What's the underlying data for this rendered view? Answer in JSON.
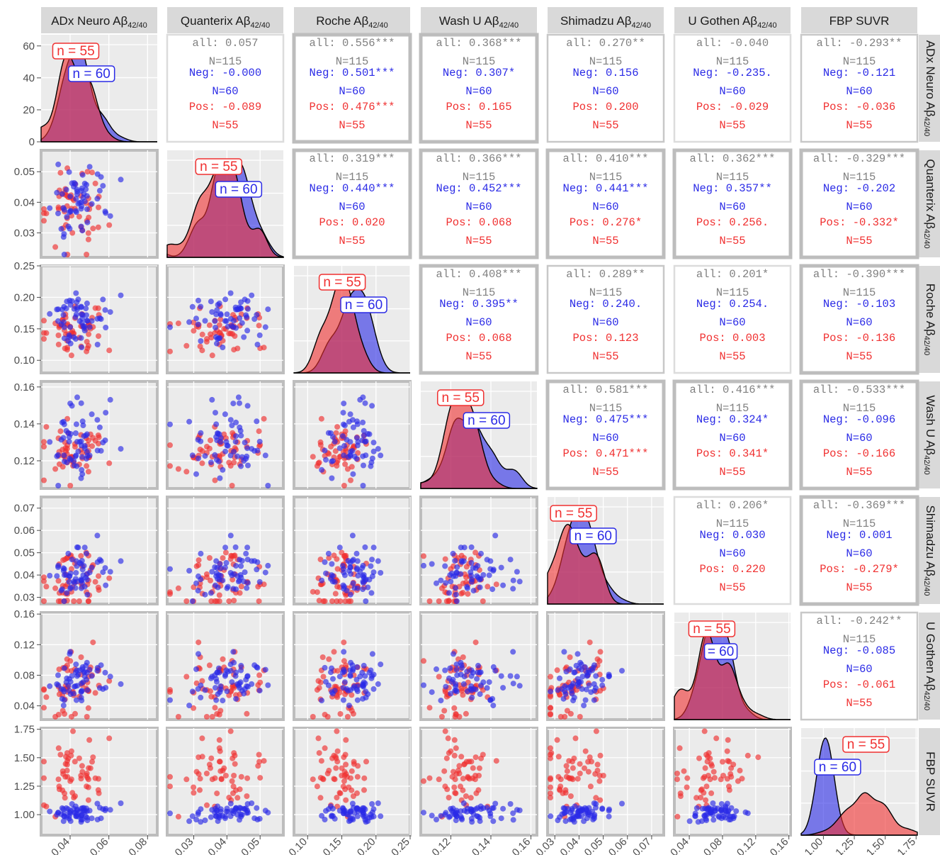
{
  "chart_data": {
    "type": "scatter-matrix",
    "variables": [
      {
        "name": "ADx Neuro",
        "sub": "Aβ",
        "subscript": "42/40",
        "range": [
          0.025,
          0.085
        ],
        "ticks": [
          {
            "v": 0.04,
            "l": "0.04"
          },
          {
            "v": 0.06,
            "l": "0.06"
          },
          {
            "v": 0.08,
            "l": "0.08"
          }
        ]
      },
      {
        "name": "Quanterix",
        "sub": "Aβ",
        "subscript": "42/40",
        "range": [
          0.022,
          0.057
        ],
        "ticks": [
          {
            "v": 0.03,
            "l": "0.03"
          },
          {
            "v": 0.04,
            "l": "0.04"
          },
          {
            "v": 0.05,
            "l": "0.05"
          }
        ]
      },
      {
        "name": "Roche",
        "sub": "Aβ",
        "subscript": "42/40",
        "range": [
          0.08,
          0.25
        ],
        "ticks": [
          {
            "v": 0.1,
            "l": "0.10"
          },
          {
            "v": 0.15,
            "l": "0.15"
          },
          {
            "v": 0.2,
            "l": "0.20"
          },
          {
            "v": 0.25,
            "l": "0.25"
          }
        ]
      },
      {
        "name": "Wash U ",
        "sub": "Aβ",
        "subscript": "42/40",
        "range": [
          0.105,
          0.163
        ],
        "ticks": [
          {
            "v": 0.12,
            "l": "0.12"
          },
          {
            "v": 0.14,
            "l": "0.14"
          },
          {
            "v": 0.16,
            "l": "0.16"
          }
        ]
      },
      {
        "name": "Shimadzu",
        "sub": "Aβ",
        "subscript": "42/40",
        "range": [
          0.027,
          0.075
        ],
        "ticks": [
          {
            "v": 0.03,
            "l": "0.03"
          },
          {
            "v": 0.04,
            "l": "0.04"
          },
          {
            "v": 0.05,
            "l": "0.05"
          },
          {
            "v": 0.06,
            "l": "0.06"
          },
          {
            "v": 0.07,
            "l": "0.07"
          }
        ]
      },
      {
        "name": "U Gothen ",
        "sub": "Aβ",
        "subscript": "42/40",
        "range": [
          0.022,
          0.162
        ],
        "ticks": [
          {
            "v": 0.04,
            "l": "0.04"
          },
          {
            "v": 0.08,
            "l": "0.08"
          },
          {
            "v": 0.12,
            "l": "0.12"
          },
          {
            "v": 0.16,
            "l": "0.16"
          }
        ]
      },
      {
        "name": "FBP SUVR",
        "sub": "",
        "subscript": "",
        "range": [
          0.82,
          1.76
        ],
        "ticks": [
          {
            "v": 1.0,
            "l": "1.00"
          },
          {
            "v": 1.25,
            "l": "1.25"
          },
          {
            "v": 1.5,
            "l": "1.50"
          },
          {
            "v": 1.75,
            "l": "1.75"
          }
        ]
      }
    ],
    "y_axis_ticks": [
      [
        {
          "v": 0,
          "l": "0"
        },
        {
          "v": 20,
          "l": "20"
        },
        {
          "v": 40,
          "l": "40"
        },
        {
          "v": 60,
          "l": "60"
        }
      ],
      [
        {
          "v": 0.03,
          "l": "0.03"
        },
        {
          "v": 0.04,
          "l": "0.04"
        },
        {
          "v": 0.05,
          "l": "0.05"
        }
      ],
      [
        {
          "v": 0.1,
          "l": "0.10"
        },
        {
          "v": 0.15,
          "l": "0.15"
        },
        {
          "v": 0.2,
          "l": "0.20"
        },
        {
          "v": 0.25,
          "l": "0.25"
        }
      ],
      [
        {
          "v": 0.12,
          "l": "0.12"
        },
        {
          "v": 0.14,
          "l": "0.14"
        },
        {
          "v": 0.16,
          "l": "0.16"
        }
      ],
      [
        {
          "v": 0.03,
          "l": "0.03"
        },
        {
          "v": 0.04,
          "l": "0.04"
        },
        {
          "v": 0.05,
          "l": "0.05"
        },
        {
          "v": 0.06,
          "l": "0.06"
        },
        {
          "v": 0.07,
          "l": "0.07"
        }
      ],
      [
        {
          "v": 0.04,
          "l": "0.04"
        },
        {
          "v": 0.08,
          "l": "0.08"
        },
        {
          "v": 0.12,
          "l": "0.12"
        },
        {
          "v": 0.16,
          "l": "0.16"
        }
      ],
      [
        {
          "v": 1.0,
          "l": "1.00"
        },
        {
          "v": 1.25,
          "l": "1.25"
        },
        {
          "v": 1.5,
          "l": "1.50"
        },
        {
          "v": 1.75,
          "l": "1.75"
        }
      ]
    ],
    "density_range": [
      0,
      67
    ],
    "groups": [
      {
        "name": "Neg",
        "color": "#2a2ae6",
        "n": 60,
        "means": [
          0.045,
          0.04,
          0.165,
          0.132,
          0.041,
          0.072,
          1.02
        ],
        "sds": [
          0.008,
          0.006,
          0.022,
          0.01,
          0.006,
          0.017,
          0.04
        ]
      },
      {
        "name": "Pos",
        "color": "#f03030",
        "n": 55,
        "means": [
          0.042,
          0.037,
          0.148,
          0.124,
          0.037,
          0.065,
          1.33
        ],
        "sds": [
          0.008,
          0.006,
          0.025,
          0.009,
          0.007,
          0.02,
          0.15
        ]
      }
    ],
    "density_labels": [
      {
        "pos": "n = 55",
        "neg": "n = 60"
      },
      {
        "pos": "n = 55",
        "neg": "n = 60"
      },
      {
        "pos": "n = 55",
        "neg": "n = 60"
      },
      {
        "pos": "n = 55",
        "neg": "n = 60"
      },
      {
        "pos": "n = 55",
        "neg": "n = 60"
      },
      {
        "pos": "n = 55",
        "neg": "= 60"
      },
      {
        "pos": "n = 55",
        "neg": "n = 60"
      }
    ],
    "correlations": [
      {
        "row": 0,
        "col": 1,
        "all": "all: 0.057",
        "neg": "Neg: -0.000",
        "pos": "Pos: -0.089"
      },
      {
        "row": 0,
        "col": 2,
        "all": "all: 0.556***",
        "neg": "Neg: 0.501***",
        "pos": "Pos: 0.476***"
      },
      {
        "row": 0,
        "col": 3,
        "all": "all: 0.368***",
        "neg": "Neg: 0.307*",
        "pos": "Pos: 0.165"
      },
      {
        "row": 0,
        "col": 4,
        "all": "all: 0.270**",
        "neg": "Neg: 0.156",
        "pos": "Pos: 0.200"
      },
      {
        "row": 0,
        "col": 5,
        "all": "all: -0.040",
        "neg": "Neg: -0.235.",
        "pos": "Pos: -0.029"
      },
      {
        "row": 0,
        "col": 6,
        "all": "all: -0.293**",
        "neg": "Neg: -0.121",
        "pos": "Pos: -0.036"
      },
      {
        "row": 1,
        "col": 2,
        "all": "all: 0.319***",
        "neg": "Neg: 0.440***",
        "pos": "Pos: 0.020"
      },
      {
        "row": 1,
        "col": 3,
        "all": "all: 0.366***",
        "neg": "Neg: 0.452***",
        "pos": "Pos: 0.068"
      },
      {
        "row": 1,
        "col": 4,
        "all": "all: 0.410***",
        "neg": "Neg: 0.441***",
        "pos": "Pos: 0.276*"
      },
      {
        "row": 1,
        "col": 5,
        "all": "all: 0.362***",
        "neg": "Neg: 0.357**",
        "pos": "Pos: 0.256."
      },
      {
        "row": 1,
        "col": 6,
        "all": "all: -0.329***",
        "neg": "Neg: -0.202",
        "pos": "Pos: -0.332*"
      },
      {
        "row": 2,
        "col": 3,
        "all": "all: 0.408***",
        "neg": "Neg: 0.395**",
        "pos": "Pos: 0.068"
      },
      {
        "row": 2,
        "col": 4,
        "all": "all: 0.289**",
        "neg": "Neg: 0.240.",
        "pos": "Pos: 0.123"
      },
      {
        "row": 2,
        "col": 5,
        "all": "all: 0.201*",
        "neg": "Neg: 0.254.",
        "pos": "Pos: 0.003"
      },
      {
        "row": 2,
        "col": 6,
        "all": "all: -0.390***",
        "neg": "Neg: -0.103",
        "pos": "Pos: -0.136"
      },
      {
        "row": 3,
        "col": 4,
        "all": "all: 0.581***",
        "neg": "Neg: 0.475***",
        "pos": "Pos: 0.471***"
      },
      {
        "row": 3,
        "col": 5,
        "all": "all: 0.416***",
        "neg": "Neg: 0.324*",
        "pos": "Pos: 0.341*"
      },
      {
        "row": 3,
        "col": 6,
        "all": "all: -0.533***",
        "neg": "Neg: -0.096",
        "pos": "Pos: -0.166"
      },
      {
        "row": 4,
        "col": 5,
        "all": "all: 0.206*",
        "neg": "Neg: 0.030",
        "pos": "Pos: 0.220"
      },
      {
        "row": 4,
        "col": 6,
        "all": "all: -0.369***",
        "neg": "Neg: 0.001",
        "pos": "Pos: -0.279*"
      },
      {
        "row": 5,
        "col": 6,
        "all": "all: -0.242**",
        "neg": "Neg: -0.085",
        "pos": "Pos: -0.061"
      }
    ],
    "n_labels": {
      "all": "N=115",
      "neg": "N=60",
      "pos": "N=55"
    },
    "colors": {
      "neg": "#2a2ae6",
      "pos": "#f03030",
      "overlap": "#8b1a5a",
      "all_text": "#808080",
      "panel_bg": "#ebebeb",
      "strip_bg": "#d9d9d9"
    }
  }
}
